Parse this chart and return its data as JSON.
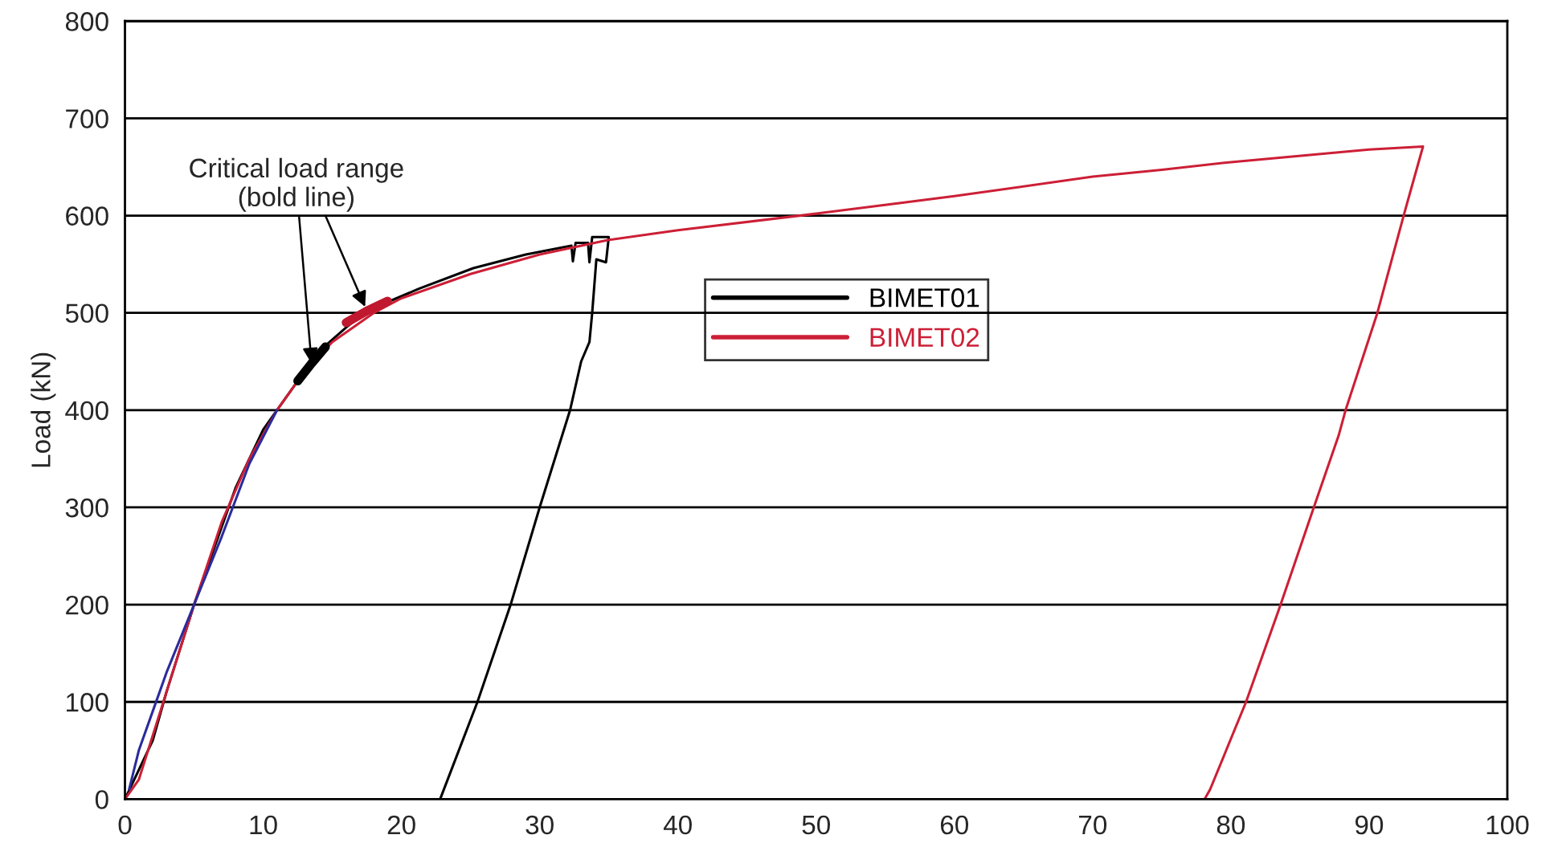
{
  "chart_data": {
    "type": "line",
    "ylabel": "Load (kN)",
    "xlim": [
      0,
      100
    ],
    "xticks": [
      0,
      10,
      20,
      30,
      40,
      50,
      60,
      70,
      80,
      90,
      100
    ],
    "ylim": [
      0,
      800
    ],
    "yticks": [
      0,
      100,
      200,
      300,
      400,
      500,
      600,
      700,
      800
    ],
    "grid": "y",
    "legend": "center",
    "marker": "none",
    "line_style": "solid",
    "series": [
      {
        "name": "BIMET01",
        "color": "#000000",
        "x": [
          0,
          2,
          3,
          5,
          7,
          8,
          10,
          12,
          14,
          16,
          17.5,
          21.3,
          25.2,
          29.0,
          32.3,
          32.4,
          32.6,
          33.5,
          33.6,
          33.8,
          35.0,
          34.8,
          34.1,
          33.8,
          33.6,
          33.0,
          32.2,
          30.0,
          27.9,
          25.5,
          22.8
        ],
        "values": [
          0,
          60,
          110,
          200,
          280,
          320,
          380,
          420,
          460,
          485,
          502,
          525,
          546,
          560,
          569,
          553,
          572,
          572,
          552,
          578,
          578,
          552,
          555,
          500,
          470,
          450,
          400,
          300,
          200,
          100,
          0
        ]
      },
      {
        "name": "BIMET02",
        "color": "#cc1f36",
        "x": [
          0,
          1,
          3,
          5,
          7,
          9,
          11,
          13,
          15,
          18,
          20,
          25,
          30,
          35,
          40,
          50,
          60,
          70,
          75,
          80,
          90,
          93.9,
          92.5,
          90.6,
          88.3,
          87.8,
          86.0,
          83.6,
          81.1,
          78.5,
          78.1
        ],
        "values": [
          0,
          20,
          110,
          200,
          285,
          350,
          400,
          440,
          470,
          500,
          515,
          540,
          560,
          575,
          585,
          602,
          620,
          640,
          647,
          655,
          668,
          671,
          600,
          500,
          400,
          374,
          300,
          200,
          100,
          10,
          0
        ]
      },
      {
        "color": "#2b2b9c",
        "x": [
          0.3,
          1,
          2,
          3,
          5,
          7,
          9,
          11
        ],
        "values": [
          10,
          50,
          90,
          130,
          200,
          270,
          345,
          400
        ]
      },
      {
        "color": "#000000",
        "x": [
          12.5,
          13.5,
          14.5
        ],
        "values": [
          430,
          448,
          465
        ]
      },
      {
        "color": "#c0182e",
        "x": [
          16,
          17.5,
          19
        ],
        "values": [
          490,
          502,
          512
        ]
      }
    ],
    "annotations": [
      {
        "text": "Critical load range\n(bold line)",
        "x": 13.5,
        "y": 448
      }
    ]
  }
}
